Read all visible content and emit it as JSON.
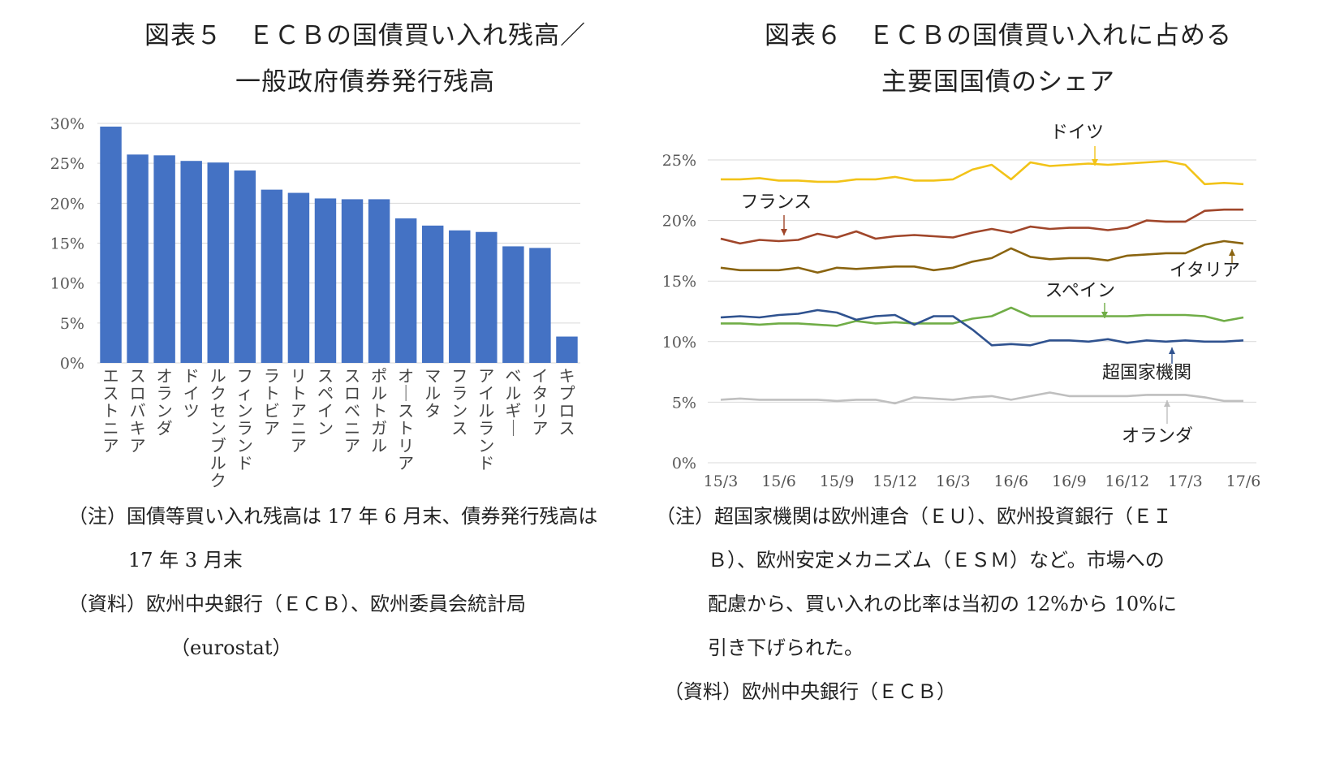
{
  "left": {
    "title_line1": "図表５　ＥＣＢの国債買い入れ残高／",
    "title_line2": "一般政府債券発行残高",
    "note_line1": "（注）国債等買い入れ残高は 17 年 6 月末、債券発行残高は",
    "note_line2": "17 年 3 月末",
    "source_line1": "（資料）欧州中央銀行（ＥＣＢ）、欧州委員会統計局",
    "source_line2": "（eurostat）"
  },
  "right": {
    "title_line1": "図表６　ＥＣＢの国債買い入れに占める",
    "title_line2": "主要国国債のシェア",
    "note_line1": "（注）超国家機関は欧州連合（ＥＵ）、欧州投資銀行（ＥＩ",
    "note_line2": "Ｂ）、欧州安定メカニズム（ＥＳＭ）など。市場への",
    "note_line3": "配慮から、買い入れの比率は当初の 12%から 10%に",
    "note_line4": "引き下げられた。",
    "source": "（資料）欧州中央銀行（ＥＣＢ）"
  },
  "chart_data": [
    {
      "type": "bar",
      "categories": [
        "エストニア",
        "スロバキア",
        "オランダ",
        "ドイツ",
        "ルクセンブルク",
        "フィンランド",
        "ラトビア",
        "リトアニア",
        "スペイン",
        "スロベニア",
        "ポルトガル",
        "オーストリア",
        "マルタ",
        "フランス",
        "アイルランド",
        "ベルギー",
        "イタリア",
        "キプロス"
      ],
      "values": [
        29.6,
        26.1,
        26.0,
        25.3,
        25.1,
        24.1,
        21.7,
        21.3,
        20.6,
        20.5,
        20.5,
        18.1,
        17.2,
        16.6,
        16.4,
        14.6,
        14.4,
        3.3
      ],
      "yticks": [
        "0%",
        "5%",
        "10%",
        "15%",
        "20%",
        "25%",
        "30%"
      ],
      "ylim": [
        0,
        30
      ],
      "color": "#4472c4",
      "grid": true
    },
    {
      "type": "line",
      "xticks": [
        "15/3",
        "15/6",
        "15/9",
        "15/12",
        "16/3",
        "16/6",
        "16/9",
        "16/12",
        "17/3",
        "17/6"
      ],
      "yticks": [
        "0%",
        "5%",
        "10%",
        "15%",
        "20%",
        "25%"
      ],
      "ylim": [
        0,
        25
      ],
      "grid": true,
      "series": [
        {
          "name": "ドイツ",
          "color": "#f2c318",
          "values": [
            23.4,
            23.4,
            23.5,
            23.3,
            23.3,
            23.2,
            23.2,
            23.4,
            23.4,
            23.6,
            23.3,
            23.3,
            23.4,
            24.2,
            24.6,
            23.4,
            24.8,
            24.5,
            24.6,
            24.7,
            24.6,
            24.7,
            24.8,
            24.9,
            24.6,
            23.0,
            23.1,
            23.0
          ]
        },
        {
          "name": "フランス",
          "color": "#a0462a",
          "values": [
            18.5,
            18.1,
            18.4,
            18.3,
            18.4,
            18.9,
            18.6,
            19.1,
            18.5,
            18.7,
            18.8,
            18.7,
            18.6,
            19.0,
            19.3,
            19.0,
            19.5,
            19.3,
            19.4,
            19.4,
            19.2,
            19.4,
            20.0,
            19.9,
            19.9,
            20.8,
            20.9,
            20.9
          ]
        },
        {
          "name": "イタリア",
          "color": "#8a6410",
          "values": [
            16.1,
            15.9,
            15.9,
            15.9,
            16.1,
            15.7,
            16.1,
            16.0,
            16.1,
            16.2,
            16.2,
            15.9,
            16.1,
            16.6,
            16.9,
            17.7,
            17.0,
            16.8,
            16.9,
            16.9,
            16.7,
            17.1,
            17.2,
            17.3,
            17.3,
            18.0,
            18.3,
            18.1
          ]
        },
        {
          "name": "スペイン",
          "color": "#70ad47",
          "values": [
            11.5,
            11.5,
            11.4,
            11.5,
            11.5,
            11.4,
            11.3,
            11.7,
            11.5,
            11.6,
            11.5,
            11.5,
            11.5,
            11.9,
            12.1,
            12.8,
            12.1,
            12.1,
            12.1,
            12.1,
            12.1,
            12.1,
            12.2,
            12.2,
            12.2,
            12.1,
            11.7,
            12.0
          ]
        },
        {
          "name": "超国家機関",
          "color": "#2f528f",
          "values": [
            12.0,
            12.1,
            12.0,
            12.2,
            12.3,
            12.6,
            12.4,
            11.8,
            12.1,
            12.2,
            11.4,
            12.1,
            12.1,
            11.0,
            9.7,
            9.8,
            9.7,
            10.1,
            10.1,
            10.0,
            10.2,
            9.9,
            10.1,
            10.0,
            10.1,
            10.0,
            10.0,
            10.1
          ]
        },
        {
          "name": "オランダ",
          "color": "#bfbfbf",
          "values": [
            5.2,
            5.3,
            5.2,
            5.2,
            5.2,
            5.2,
            5.1,
            5.2,
            5.2,
            4.9,
            5.4,
            5.3,
            5.2,
            5.4,
            5.5,
            5.2,
            5.5,
            5.8,
            5.5,
            5.5,
            5.5,
            5.5,
            5.6,
            5.6,
            5.6,
            5.4,
            5.1,
            5.1
          ]
        }
      ]
    }
  ]
}
